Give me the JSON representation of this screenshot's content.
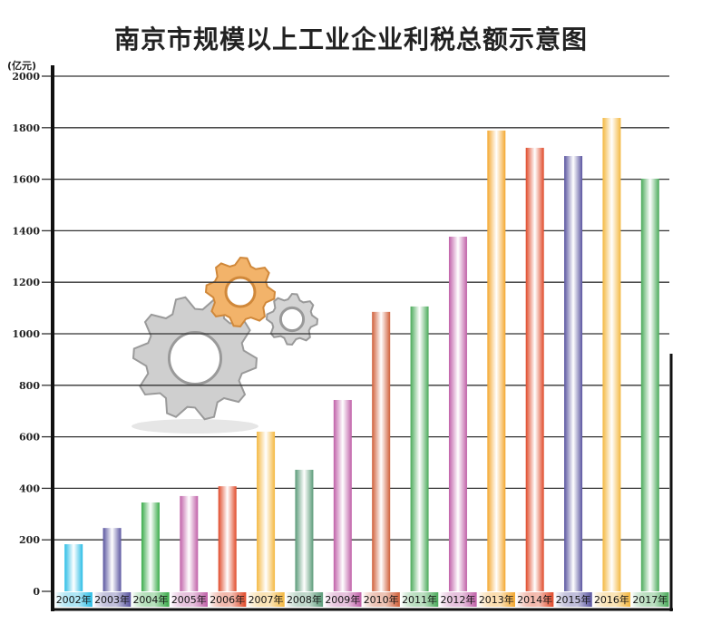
{
  "chart_data": {
    "type": "bar",
    "title": "南京市规模以上工业企业利税总额示意图",
    "ylabel": "(亿元)",
    "xlabel": "",
    "ylim": [
      0,
      2000
    ],
    "yticks": [
      "0",
      "200",
      "400",
      "600",
      "800",
      "1000",
      "1200",
      "1400",
      "1600",
      "1800",
      "2000"
    ],
    "grid": true,
    "categories": [
      "2002年",
      "2003年",
      "2004年",
      "2005年",
      "2006年",
      "2007年",
      "2008年",
      "2009年",
      "2010年",
      "2011年",
      "2012年",
      "2013年",
      "2014年",
      "2015年",
      "2016年",
      "2017年"
    ],
    "values": [
      183,
      246,
      345,
      370,
      408,
      620,
      472,
      743,
      1085,
      1106,
      1377,
      1789,
      1722,
      1690,
      1838,
      1602
    ],
    "colors": [
      "#2bbde6",
      "#5a55a0",
      "#3aab4a",
      "#c060a8",
      "#e04a2a",
      "#f4b840",
      "#5a9a78",
      "#c060a8",
      "#d0603a",
      "#4aaa5a",
      "#c060a8",
      "#f4a830",
      "#e04a2a",
      "#5a55a0",
      "#f4b840",
      "#4aaa5a"
    ]
  },
  "decoration": {
    "icon": "gears-icon"
  }
}
